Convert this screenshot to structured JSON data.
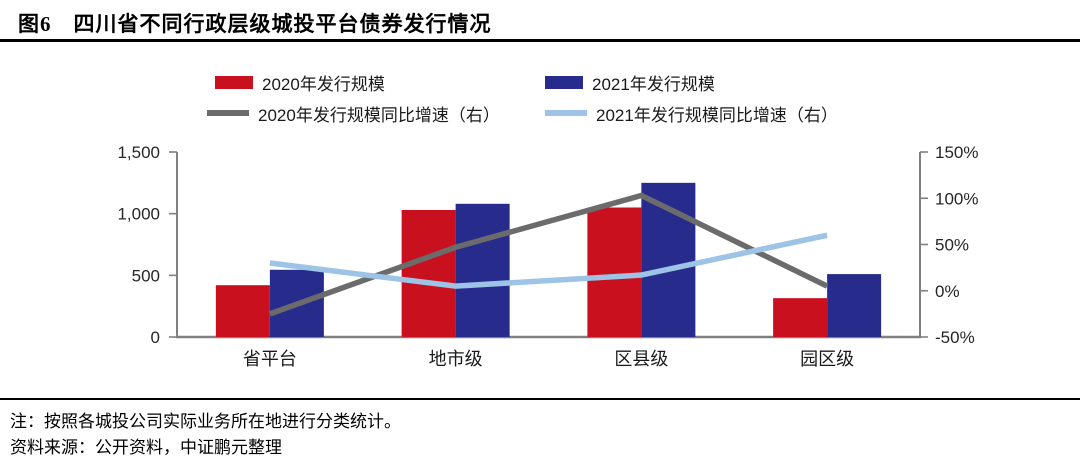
{
  "header": {
    "title": "图6　四川省不同行政层级城投平台债券发行情况"
  },
  "legend": [
    {
      "label": "2020年发行规模",
      "marker": "bar",
      "color": "#c8101e"
    },
    {
      "label": "2021年发行规模",
      "marker": "bar",
      "color": "#262b8c"
    },
    {
      "label": "2020年发行规模同比增速（右）",
      "marker": "line",
      "color": "#6b6b6b"
    },
    {
      "label": "2021年发行规模同比增速（右）",
      "marker": "line",
      "color": "#9dc3e6"
    }
  ],
  "chart_data": {
    "type": "bar",
    "subtype": "bar-line-combo",
    "title": "四川省不同行政层级城投平台债券发行情况",
    "categories": [
      "省平台",
      "地市级",
      "区县级",
      "园区级"
    ],
    "bar_series": [
      {
        "name": "2020年发行规模",
        "color": "#c8101e",
        "axis": "left",
        "values": [
          420,
          1030,
          1050,
          315
        ]
      },
      {
        "name": "2021年发行规模",
        "color": "#262b8c",
        "axis": "left",
        "values": [
          545,
          1080,
          1250,
          510
        ]
      }
    ],
    "line_series": [
      {
        "name": "2020年发行规模同比增速（右）",
        "color": "#6b6b6b",
        "axis": "right",
        "values_pct": [
          -25,
          47,
          103,
          5
        ]
      },
      {
        "name": "2021年发行规模同比增速（右）",
        "color": "#9dc3e6",
        "axis": "right",
        "values_pct": [
          30,
          5,
          17,
          60
        ]
      }
    ],
    "left_axis": {
      "min": 0,
      "max": 1500,
      "tick_values": [
        0,
        500,
        1000,
        1500
      ],
      "ticks": [
        "0",
        "500",
        "1,000",
        "1,500"
      ]
    },
    "right_axis": {
      "min": -50,
      "max": 150,
      "tick_values": [
        -50,
        0,
        50,
        100,
        150
      ],
      "ticks": [
        "-50%",
        "0%",
        "50%",
        "100%",
        "150%"
      ]
    },
    "grid": false,
    "legend_position": "top",
    "axis_color": "#808080"
  },
  "footer": {
    "note": "注：按照各城投公司实际业务所在地进行分类统计。",
    "source": "资料来源：公开资料，中证鹏元整理"
  }
}
